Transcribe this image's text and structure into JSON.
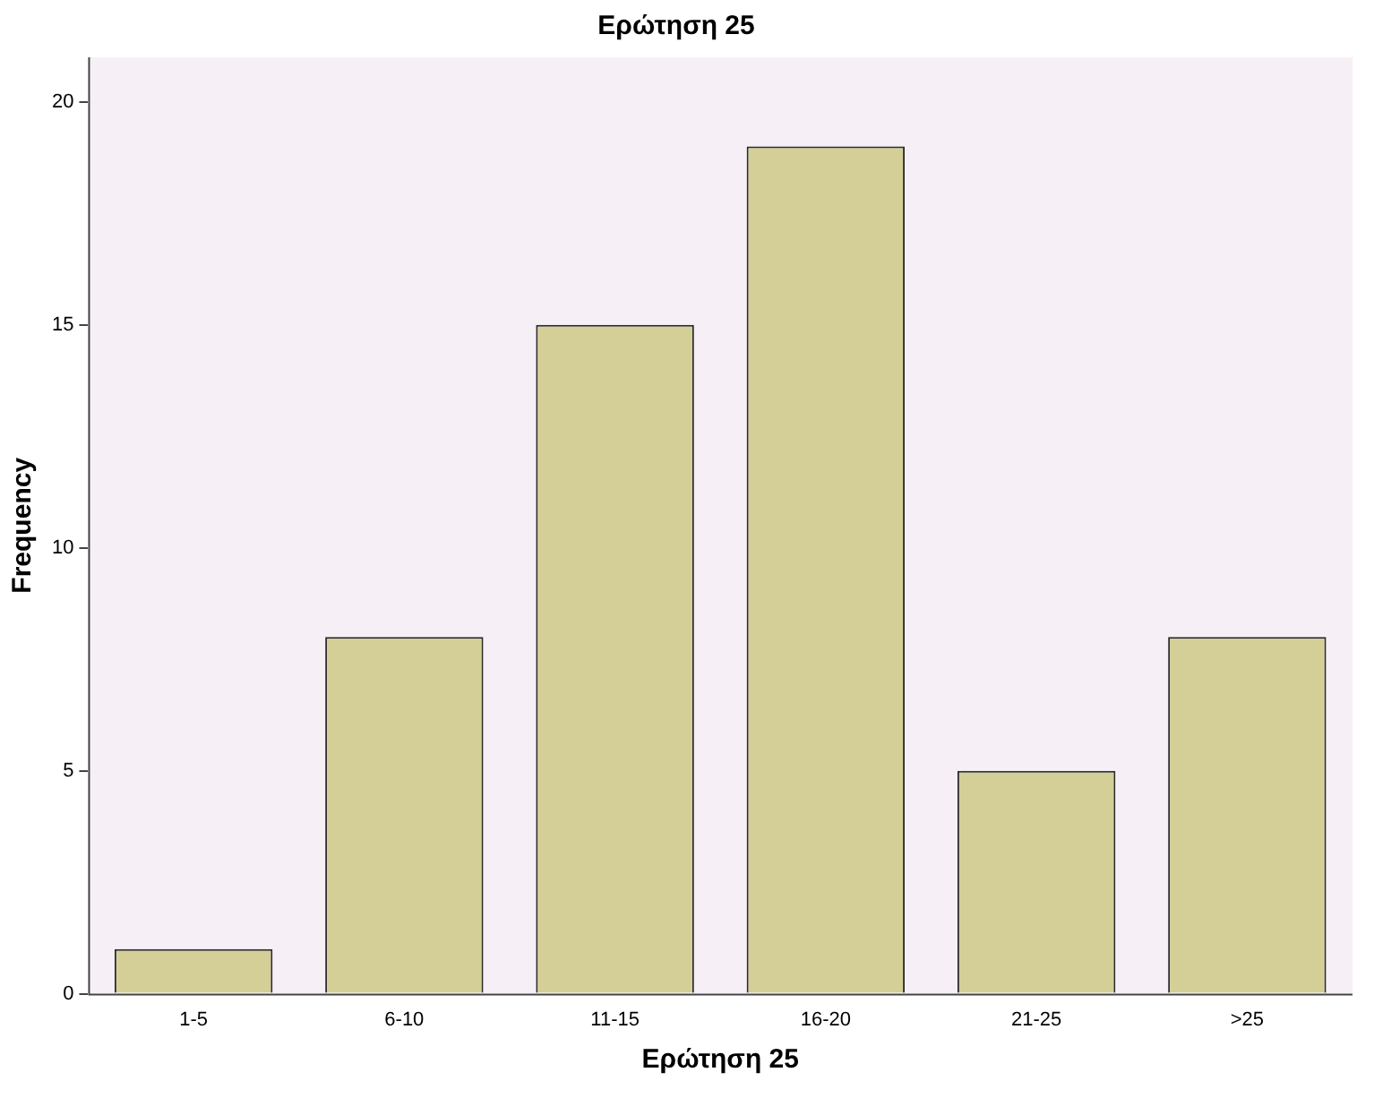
{
  "chart_data": {
    "type": "bar",
    "title": "Ερώτηση 25",
    "xlabel": "Ερώτηση 25",
    "ylabel": "Frequency",
    "categories": [
      "1-5",
      "6-10",
      "11-15",
      "16-20",
      "21-25",
      ">25"
    ],
    "values": [
      1,
      8,
      15,
      19,
      5,
      8
    ],
    "color": "#d4cf97",
    "ylim": [
      0,
      21
    ],
    "yticks": [
      0,
      5,
      10,
      15,
      20
    ],
    "grid": false,
    "legend": false
  }
}
